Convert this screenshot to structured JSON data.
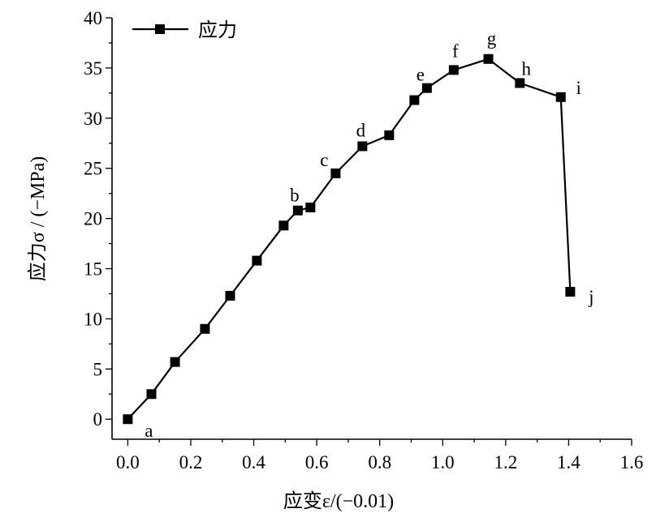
{
  "chart_data": {
    "type": "line",
    "xlabel": "应变ε/(−0.01)",
    "ylabel": "应力σ / (−MPa)",
    "xlim": [
      -0.05,
      1.6
    ],
    "ylim": [
      -2,
      40
    ],
    "x_ticks": [
      "0.0",
      "0.2",
      "0.4",
      "0.6",
      "0.8",
      "1.0",
      "1.2",
      "1.4",
      "1.6"
    ],
    "y_ticks": [
      "0",
      "5",
      "10",
      "15",
      "20",
      "25",
      "30",
      "35",
      "40"
    ],
    "grid": false,
    "legend": {
      "position": "top-left"
    },
    "series": [
      {
        "name": "应力",
        "color": "#000000",
        "marker": "square",
        "x": [
          0.0,
          0.075,
          0.15,
          0.245,
          0.325,
          0.41,
          0.495,
          0.54,
          0.58,
          0.66,
          0.745,
          0.83,
          0.91,
          0.95,
          1.035,
          1.145,
          1.245,
          1.375,
          1.405
        ],
        "y": [
          0.0,
          2.5,
          5.7,
          9.0,
          12.3,
          15.8,
          19.3,
          20.8,
          21.1,
          24.5,
          27.2,
          28.3,
          31.8,
          33.0,
          34.8,
          35.9,
          33.5,
          32.1,
          12.7
        ]
      }
    ],
    "annotations": [
      {
        "text": "a",
        "x": 0.0,
        "y": 0.0
      },
      {
        "text": "b",
        "x": 0.54,
        "y": 20.8
      },
      {
        "text": "c",
        "x": 0.66,
        "y": 24.5
      },
      {
        "text": "d",
        "x": 0.745,
        "y": 27.2
      },
      {
        "text": "e",
        "x": 0.95,
        "y": 33.0
      },
      {
        "text": "f",
        "x": 1.035,
        "y": 34.8
      },
      {
        "text": "g",
        "x": 1.145,
        "y": 35.9
      },
      {
        "text": "h",
        "x": 1.245,
        "y": 33.5
      },
      {
        "text": "i",
        "x": 1.375,
        "y": 32.1
      },
      {
        "text": "j",
        "x": 1.405,
        "y": 12.7
      }
    ]
  }
}
